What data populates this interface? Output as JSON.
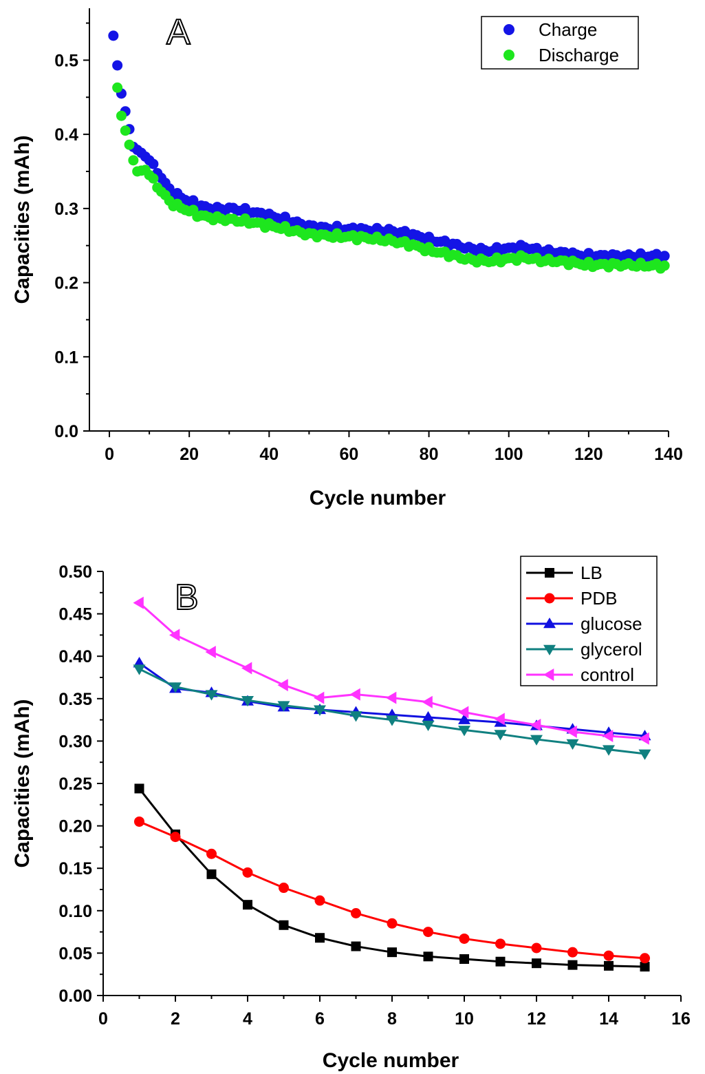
{
  "chart_data": [
    {
      "type": "scatter",
      "panel_label": "A",
      "xlabel": "Cycle number",
      "ylabel": "Capacities (mAh)",
      "xlim": [
        -5,
        140
      ],
      "ylim": [
        0,
        0.57
      ],
      "xticks": [
        "0",
        "20",
        "40",
        "60",
        "80",
        "100",
        "120",
        "140"
      ],
      "yticks": [
        "0.0",
        "0.1",
        "0.2",
        "0.3",
        "0.4",
        "0.5"
      ],
      "legend_position": "top-right",
      "series": [
        {
          "name": "Charge",
          "color": "#1414e6",
          "anchors": [
            [
              1,
              0.533
            ],
            [
              2,
              0.493
            ],
            [
              3,
              0.455
            ],
            [
              4,
              0.431
            ],
            [
              5,
              0.407
            ],
            [
              6,
              0.383
            ],
            [
              8,
              0.375
            ],
            [
              10,
              0.365
            ],
            [
              12,
              0.35
            ],
            [
              14,
              0.333
            ],
            [
              16,
              0.32
            ],
            [
              18,
              0.315
            ],
            [
              20,
              0.31
            ],
            [
              22,
              0.305
            ],
            [
              25,
              0.3
            ],
            [
              28,
              0.299
            ],
            [
              30,
              0.3
            ],
            [
              33,
              0.298
            ],
            [
              36,
              0.295
            ],
            [
              40,
              0.29
            ],
            [
              43,
              0.287
            ],
            [
              46,
              0.282
            ],
            [
              50,
              0.276
            ],
            [
              55,
              0.273
            ],
            [
              60,
              0.272
            ],
            [
              65,
              0.271
            ],
            [
              70,
              0.27
            ],
            [
              75,
              0.266
            ],
            [
              80,
              0.258
            ],
            [
              85,
              0.253
            ],
            [
              90,
              0.246
            ],
            [
              95,
              0.243
            ],
            [
              100,
              0.246
            ],
            [
              104,
              0.248
            ],
            [
              108,
              0.243
            ],
            [
              112,
              0.241
            ],
            [
              116,
              0.238
            ],
            [
              120,
              0.236
            ],
            [
              125,
              0.236
            ],
            [
              130,
              0.236
            ],
            [
              135,
              0.236
            ],
            [
              139,
              0.236
            ]
          ]
        },
        {
          "name": "Discharge",
          "color": "#1ee61e",
          "anchors": [
            [
              2,
              0.463
            ],
            [
              3,
              0.425
            ],
            [
              4,
              0.405
            ],
            [
              5,
              0.386
            ],
            [
              6,
              0.365
            ],
            [
              7,
              0.35
            ],
            [
              9,
              0.352
            ],
            [
              11,
              0.338
            ],
            [
              13,
              0.323
            ],
            [
              15,
              0.31
            ],
            [
              17,
              0.303
            ],
            [
              20,
              0.297
            ],
            [
              23,
              0.29
            ],
            [
              26,
              0.287
            ],
            [
              30,
              0.285
            ],
            [
              34,
              0.283
            ],
            [
              38,
              0.279
            ],
            [
              42,
              0.275
            ],
            [
              46,
              0.27
            ],
            [
              50,
              0.265
            ],
            [
              55,
              0.263
            ],
            [
              60,
              0.262
            ],
            [
              65,
              0.26
            ],
            [
              70,
              0.257
            ],
            [
              75,
              0.252
            ],
            [
              80,
              0.244
            ],
            [
              85,
              0.238
            ],
            [
              90,
              0.231
            ],
            [
              95,
              0.229
            ],
            [
              100,
              0.232
            ],
            [
              104,
              0.234
            ],
            [
              108,
              0.23
            ],
            [
              112,
              0.229
            ],
            [
              116,
              0.227
            ],
            [
              120,
              0.224
            ],
            [
              125,
              0.224
            ],
            [
              130,
              0.224
            ],
            [
              135,
              0.223
            ],
            [
              139,
              0.223
            ]
          ]
        }
      ]
    },
    {
      "type": "line",
      "panel_label": "B",
      "xlabel": "Cycle number",
      "ylabel": "Capacities (mAh)",
      "xlim": [
        0,
        16
      ],
      "ylim": [
        0,
        0.5
      ],
      "xticks": [
        "0",
        "2",
        "4",
        "6",
        "8",
        "10",
        "12",
        "14",
        "16"
      ],
      "yticks": [
        "0.00",
        "0.05",
        "0.10",
        "0.15",
        "0.20",
        "0.25",
        "0.30",
        "0.35",
        "0.40",
        "0.45",
        "0.50"
      ],
      "legend_position": "top-right",
      "x": [
        1,
        2,
        3,
        4,
        5,
        6,
        7,
        8,
        9,
        10,
        11,
        12,
        13,
        14,
        15
      ],
      "series": [
        {
          "name": "LB",
          "color": "#000000",
          "marker": "square",
          "values": [
            0.244,
            0.19,
            0.143,
            0.107,
            0.083,
            0.068,
            0.058,
            0.051,
            0.046,
            0.043,
            0.04,
            0.038,
            0.036,
            0.035,
            0.034
          ]
        },
        {
          "name": "PDB",
          "color": "#ff0000",
          "marker": "circle",
          "values": [
            0.205,
            0.187,
            0.167,
            0.145,
            0.127,
            0.112,
            0.097,
            0.085,
            0.075,
            0.067,
            0.061,
            0.056,
            0.051,
            0.047,
            0.044
          ]
        },
        {
          "name": "glucose",
          "color": "#1010e0",
          "marker": "triangle-up",
          "values": [
            0.392,
            0.362,
            0.357,
            0.347,
            0.34,
            0.337,
            0.334,
            0.331,
            0.328,
            0.325,
            0.322,
            0.318,
            0.314,
            0.31,
            0.306
          ]
        },
        {
          "name": "glycerol",
          "color": "#108080",
          "marker": "triangle-down",
          "values": [
            0.385,
            0.364,
            0.355,
            0.348,
            0.342,
            0.337,
            0.33,
            0.325,
            0.319,
            0.313,
            0.308,
            0.302,
            0.297,
            0.29,
            0.285
          ]
        },
        {
          "name": "control",
          "color": "#ff33ff",
          "marker": "triangle-left",
          "values": [
            0.463,
            0.425,
            0.405,
            0.386,
            0.366,
            0.351,
            0.355,
            0.351,
            0.346,
            0.334,
            0.326,
            0.319,
            0.311,
            0.306,
            0.303
          ]
        }
      ]
    }
  ]
}
